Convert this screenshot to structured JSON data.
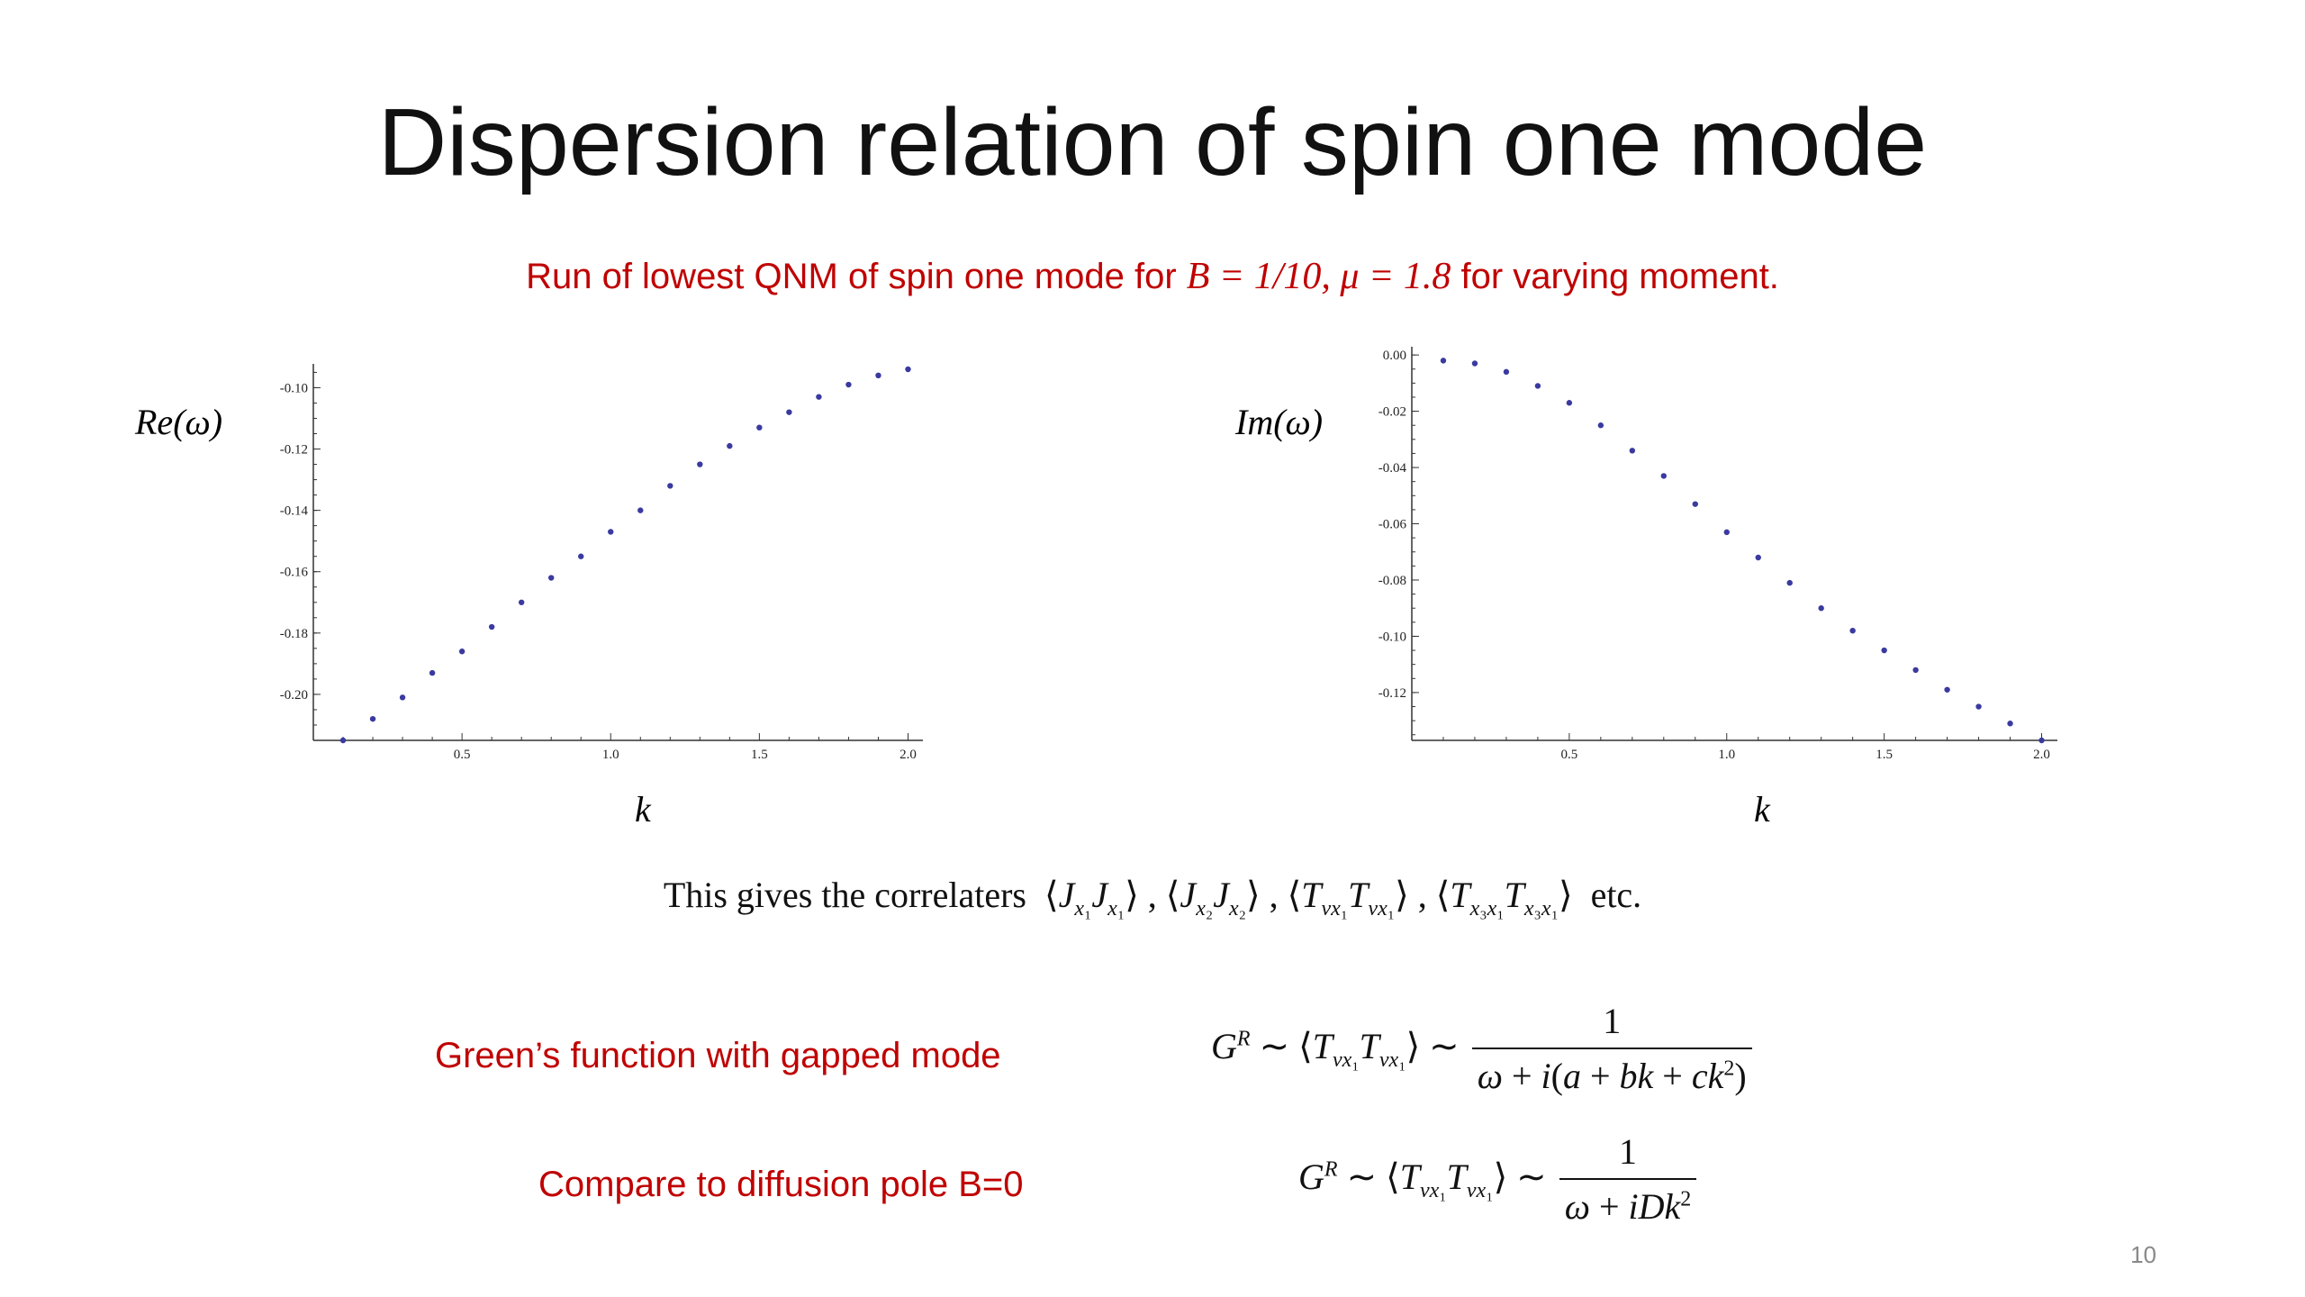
{
  "slide": {
    "title": "Dispersion relation of spin one mode",
    "subtitle_prefix": "Run of lowest QNM of spin one mode for ",
    "subtitle_math1": "B = 1/10, μ = 1.8",
    "subtitle_suffix": " for varying moment.",
    "page_number": "10",
    "accent_color": "#c00000"
  },
  "chart_data": [
    {
      "type": "scatter",
      "ylabel": "Re(ω)",
      "xlabel": "k",
      "xlim": [
        0.0,
        2.05
      ],
      "ylim": [
        -0.215,
        -0.094
      ],
      "xticks": [
        0.5,
        1.0,
        1.5,
        2.0
      ],
      "xtick_labels": [
        "0.5",
        "1.0",
        "1.5",
        "2.0"
      ],
      "yticks": [
        -0.1,
        -0.12,
        -0.14,
        -0.16,
        -0.18,
        -0.2
      ],
      "ytick_labels": [
        "-0.10",
        "-0.12",
        "-0.14",
        "-0.16",
        "-0.18",
        "-0.20"
      ],
      "grid": false,
      "marker_color": "#3a3aa0",
      "x": [
        0.1,
        0.2,
        0.3,
        0.4,
        0.5,
        0.6,
        0.7,
        0.8,
        0.9,
        1.0,
        1.1,
        1.2,
        1.3,
        1.4,
        1.5,
        1.6,
        1.7,
        1.8,
        1.9,
        2.0
      ],
      "y": [
        -0.215,
        -0.208,
        -0.201,
        -0.193,
        -0.186,
        -0.178,
        -0.17,
        -0.162,
        -0.155,
        -0.147,
        -0.14,
        -0.132,
        -0.125,
        -0.119,
        -0.113,
        -0.108,
        -0.103,
        -0.099,
        -0.096,
        -0.094
      ]
    },
    {
      "type": "scatter",
      "ylabel": "Im(ω)",
      "xlabel": "k",
      "xlim": [
        0.0,
        2.05
      ],
      "ylim": [
        -0.137,
        0.001
      ],
      "xticks": [
        0.5,
        1.0,
        1.5,
        2.0
      ],
      "xtick_labels": [
        "0.5",
        "1.0",
        "1.5",
        "2.0"
      ],
      "yticks": [
        0.0,
        -0.02,
        -0.04,
        -0.06,
        -0.08,
        -0.1,
        -0.12
      ],
      "ytick_labels": [
        "0.00",
        "-0.02",
        "-0.04",
        "-0.06",
        "-0.08",
        "-0.10",
        "-0.12"
      ],
      "grid": false,
      "marker_color": "#3a3aa0",
      "x": [
        0.1,
        0.2,
        0.3,
        0.4,
        0.5,
        0.6,
        0.7,
        0.8,
        0.9,
        1.0,
        1.1,
        1.2,
        1.3,
        1.4,
        1.5,
        1.6,
        1.7,
        1.8,
        1.9,
        2.0
      ],
      "y": [
        -0.002,
        -0.003,
        -0.006,
        -0.011,
        -0.017,
        -0.025,
        -0.034,
        -0.043,
        -0.053,
        -0.063,
        -0.072,
        -0.081,
        -0.09,
        -0.098,
        -0.105,
        -0.112,
        -0.119,
        -0.125,
        -0.131,
        -0.137
      ]
    }
  ],
  "sentence": {
    "lead": "This gives the correlaters",
    "tail": "etc."
  },
  "rows": [
    {
      "label": "Green’s function with gapped mode"
    },
    {
      "label": "Compare to diffusion pole B=0"
    }
  ]
}
